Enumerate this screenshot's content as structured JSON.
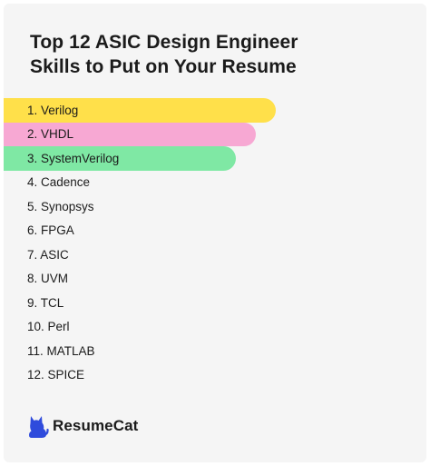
{
  "title_lines": [
    "Top 12 ASIC Design Engineer",
    "Skills to Put on Your Resume"
  ],
  "skills": [
    {
      "label": "1. Verilog",
      "highlight": "#ffe04a"
    },
    {
      "label": "2. VHDL",
      "highlight": "#f7a8d3"
    },
    {
      "label": "3. SystemVerilog",
      "highlight": "#7fe8a4"
    },
    {
      "label": "4. Cadence",
      "highlight": null
    },
    {
      "label": "5. Synopsys",
      "highlight": null
    },
    {
      "label": "6. FPGA",
      "highlight": null
    },
    {
      "label": "7. ASIC",
      "highlight": null
    },
    {
      "label": "8. UVM",
      "highlight": null
    },
    {
      "label": "9. TCL",
      "highlight": null
    },
    {
      "label": "10. Perl",
      "highlight": null
    },
    {
      "label": "11. MATLAB",
      "highlight": null
    },
    {
      "label": "12. SPICE",
      "highlight": null
    }
  ],
  "brand": {
    "name": "ResumeCat",
    "icon": "cat-logo-icon",
    "color": "#2f4bdc"
  }
}
